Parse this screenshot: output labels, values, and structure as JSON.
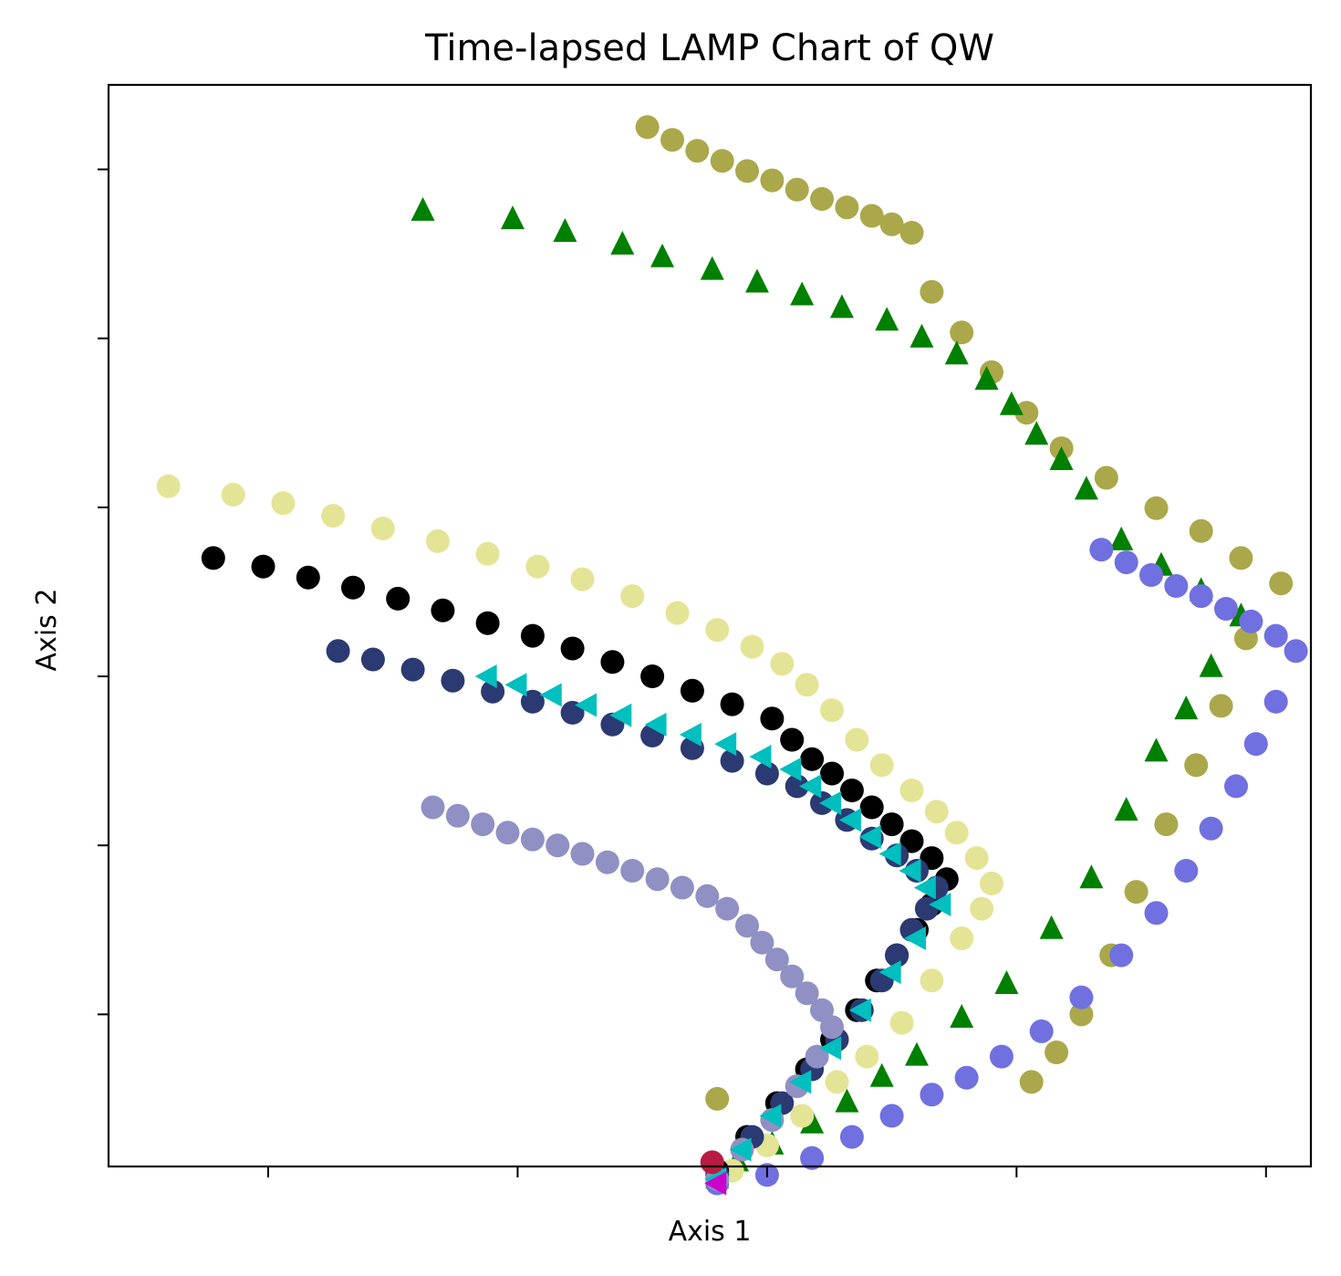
{
  "chart_data": {
    "type": "scatter",
    "title": "Time-lapsed LAMP Chart of QW",
    "xlabel": "Axis 1",
    "ylabel": "Axis 2",
    "xlim": [
      -7.2,
      16.9
    ],
    "ylim": [
      -5.8,
      7.0
    ],
    "x_ticks": [
      -4,
      1,
      6,
      11,
      16
    ],
    "y_ticks": [
      -4,
      -2,
      0,
      2,
      4,
      6
    ],
    "tick_labels_shown": false,
    "grid": false,
    "legend": "none",
    "origin": [
      5.0,
      -5.0
    ],
    "series": [
      {
        "color": "#aaa84a",
        "marker": "circle",
        "points": [
          [
            3.6,
            6.5
          ],
          [
            4.1,
            6.35
          ],
          [
            4.6,
            6.22
          ],
          [
            5.1,
            6.1
          ],
          [
            5.6,
            5.98
          ],
          [
            6.1,
            5.87
          ],
          [
            6.6,
            5.76
          ],
          [
            7.1,
            5.65
          ],
          [
            7.6,
            5.55
          ],
          [
            8.1,
            5.45
          ],
          [
            8.5,
            5.35
          ],
          [
            8.9,
            5.25
          ],
          [
            9.3,
            4.55
          ],
          [
            9.9,
            4.07
          ],
          [
            10.5,
            3.6
          ],
          [
            11.2,
            3.12
          ],
          [
            11.9,
            2.7
          ],
          [
            12.8,
            2.35
          ],
          [
            13.8,
            1.99
          ],
          [
            14.7,
            1.72
          ],
          [
            15.5,
            1.4
          ],
          [
            16.3,
            1.1
          ],
          [
            15.6,
            0.45
          ],
          [
            15.1,
            -0.35
          ],
          [
            14.6,
            -1.05
          ],
          [
            14.0,
            -1.75
          ],
          [
            13.4,
            -2.55
          ],
          [
            12.9,
            -3.3
          ],
          [
            12.3,
            -4.0
          ],
          [
            11.8,
            -4.45
          ],
          [
            11.3,
            -4.8
          ],
          [
            5.0,
            -5.0
          ]
        ]
      },
      {
        "color": "#008000",
        "marker": "triangle-up",
        "points": [
          [
            -0.9,
            5.5
          ],
          [
            0.9,
            5.4
          ],
          [
            1.95,
            5.25
          ],
          [
            3.1,
            5.1
          ],
          [
            3.9,
            4.95
          ],
          [
            4.9,
            4.8
          ],
          [
            5.8,
            4.65
          ],
          [
            6.7,
            4.5
          ],
          [
            7.5,
            4.35
          ],
          [
            8.4,
            4.2
          ],
          [
            9.1,
            4.0
          ],
          [
            9.8,
            3.8
          ],
          [
            10.4,
            3.5
          ],
          [
            10.9,
            3.2
          ],
          [
            11.4,
            2.85
          ],
          [
            11.9,
            2.55
          ],
          [
            12.4,
            2.2
          ],
          [
            13.1,
            1.6
          ],
          [
            13.9,
            1.3
          ],
          [
            14.7,
            1.0
          ],
          [
            15.5,
            0.7
          ],
          [
            14.9,
            0.1
          ],
          [
            14.4,
            -0.4
          ],
          [
            13.8,
            -0.9
          ],
          [
            13.2,
            -1.6
          ],
          [
            12.5,
            -2.4
          ],
          [
            11.7,
            -3.0
          ],
          [
            10.8,
            -3.65
          ],
          [
            9.9,
            -4.05
          ],
          [
            9.0,
            -4.5
          ],
          [
            8.3,
            -4.75
          ],
          [
            7.6,
            -5.05
          ],
          [
            6.9,
            -5.3
          ],
          [
            6.1,
            -5.55
          ],
          [
            5.4,
            -5.75
          ],
          [
            5.0,
            -5.95
          ]
        ]
      },
      {
        "color": "#7070e0",
        "marker": "circle",
        "points": [
          [
            12.7,
            1.5
          ],
          [
            13.2,
            1.35
          ],
          [
            13.7,
            1.2
          ],
          [
            14.2,
            1.07
          ],
          [
            14.7,
            0.95
          ],
          [
            15.2,
            0.8
          ],
          [
            15.7,
            0.65
          ],
          [
            16.2,
            0.48
          ],
          [
            16.6,
            0.3
          ],
          [
            16.2,
            -0.3
          ],
          [
            15.8,
            -0.8
          ],
          [
            15.4,
            -1.3
          ],
          [
            14.9,
            -1.8
          ],
          [
            14.4,
            -2.3
          ],
          [
            13.8,
            -2.8
          ],
          [
            13.1,
            -3.3
          ],
          [
            12.3,
            -3.8
          ],
          [
            11.5,
            -4.2
          ],
          [
            10.7,
            -4.5
          ],
          [
            10.0,
            -4.75
          ],
          [
            9.3,
            -4.95
          ],
          [
            8.5,
            -5.2
          ],
          [
            7.7,
            -5.45
          ],
          [
            6.9,
            -5.7
          ],
          [
            6.0,
            -5.9
          ],
          [
            5.0,
            -6.0
          ]
        ]
      },
      {
        "color": "#e4e496",
        "marker": "circle",
        "points": [
          [
            -6.0,
            2.25
          ],
          [
            -4.7,
            2.15
          ],
          [
            -3.7,
            2.05
          ],
          [
            -2.7,
            1.9
          ],
          [
            -1.7,
            1.75
          ],
          [
            -0.6,
            1.6
          ],
          [
            0.4,
            1.45
          ],
          [
            1.4,
            1.3
          ],
          [
            2.3,
            1.15
          ],
          [
            3.3,
            0.95
          ],
          [
            4.2,
            0.75
          ],
          [
            5.0,
            0.55
          ],
          [
            5.7,
            0.35
          ],
          [
            6.3,
            0.15
          ],
          [
            6.8,
            -0.1
          ],
          [
            7.3,
            -0.4
          ],
          [
            7.8,
            -0.75
          ],
          [
            8.3,
            -1.05
          ],
          [
            8.9,
            -1.35
          ],
          [
            9.4,
            -1.6
          ],
          [
            9.8,
            -1.85
          ],
          [
            10.2,
            -2.15
          ],
          [
            10.5,
            -2.45
          ],
          [
            10.3,
            -2.75
          ],
          [
            9.9,
            -3.1
          ],
          [
            9.3,
            -3.6
          ],
          [
            8.7,
            -4.1
          ],
          [
            8.0,
            -4.5
          ],
          [
            7.4,
            -4.8
          ],
          [
            6.7,
            -5.2
          ],
          [
            6.0,
            -5.55
          ],
          [
            5.3,
            -5.85
          ]
        ]
      },
      {
        "color": "#000000",
        "marker": "circle",
        "points": [
          [
            -5.1,
            1.4
          ],
          [
            -4.1,
            1.3
          ],
          [
            -3.2,
            1.17
          ],
          [
            -2.3,
            1.05
          ],
          [
            -1.4,
            0.92
          ],
          [
            -0.5,
            0.78
          ],
          [
            0.4,
            0.63
          ],
          [
            1.3,
            0.48
          ],
          [
            2.1,
            0.33
          ],
          [
            2.9,
            0.17
          ],
          [
            3.7,
            0.0
          ],
          [
            4.5,
            -0.17
          ],
          [
            5.3,
            -0.33
          ],
          [
            6.1,
            -0.5
          ],
          [
            6.5,
            -0.75
          ],
          [
            6.9,
            -0.98
          ],
          [
            7.3,
            -1.15
          ],
          [
            7.7,
            -1.35
          ],
          [
            8.1,
            -1.55
          ],
          [
            8.5,
            -1.75
          ],
          [
            8.9,
            -1.95
          ],
          [
            9.3,
            -2.15
          ],
          [
            9.6,
            -2.4
          ],
          [
            9.3,
            -2.7
          ],
          [
            9.0,
            -3.0
          ],
          [
            8.6,
            -3.3
          ],
          [
            8.2,
            -3.6
          ],
          [
            7.8,
            -3.95
          ],
          [
            7.3,
            -4.3
          ],
          [
            6.8,
            -4.65
          ],
          [
            6.2,
            -5.05
          ],
          [
            5.6,
            -5.45
          ],
          [
            5.0,
            -5.85
          ]
        ]
      },
      {
        "color": "#2b3a72",
        "marker": "circle",
        "points": [
          [
            -2.6,
            0.3
          ],
          [
            -1.9,
            0.2
          ],
          [
            -1.1,
            0.08
          ],
          [
            -0.3,
            -0.05
          ],
          [
            0.5,
            -0.18
          ],
          [
            1.3,
            -0.3
          ],
          [
            2.1,
            -0.43
          ],
          [
            2.9,
            -0.57
          ],
          [
            3.7,
            -0.7
          ],
          [
            4.5,
            -0.85
          ],
          [
            5.3,
            -1.0
          ],
          [
            6.0,
            -1.15
          ],
          [
            6.6,
            -1.3
          ],
          [
            7.1,
            -1.5
          ],
          [
            7.6,
            -1.7
          ],
          [
            8.1,
            -1.92
          ],
          [
            8.6,
            -2.12
          ],
          [
            9.0,
            -2.3
          ],
          [
            9.4,
            -2.5
          ],
          [
            9.2,
            -2.75
          ],
          [
            8.9,
            -3.0
          ],
          [
            8.6,
            -3.3
          ],
          [
            8.3,
            -3.6
          ],
          [
            7.9,
            -3.95
          ],
          [
            7.4,
            -4.3
          ],
          [
            6.9,
            -4.65
          ],
          [
            6.3,
            -5.05
          ],
          [
            5.7,
            -5.45
          ],
          [
            5.0,
            -5.9
          ]
        ]
      },
      {
        "color": "#9090c4",
        "marker": "circle",
        "points": [
          [
            -0.7,
            -1.55
          ],
          [
            -0.2,
            -1.65
          ],
          [
            0.3,
            -1.75
          ],
          [
            0.8,
            -1.85
          ],
          [
            1.3,
            -1.93
          ],
          [
            1.8,
            -2.0
          ],
          [
            2.3,
            -2.1
          ],
          [
            2.8,
            -2.2
          ],
          [
            3.3,
            -2.3
          ],
          [
            3.8,
            -2.4
          ],
          [
            4.3,
            -2.5
          ],
          [
            4.8,
            -2.6
          ],
          [
            5.2,
            -2.75
          ],
          [
            5.6,
            -2.95
          ],
          [
            5.9,
            -3.15
          ],
          [
            6.2,
            -3.35
          ],
          [
            6.5,
            -3.55
          ],
          [
            6.8,
            -3.75
          ],
          [
            7.1,
            -3.95
          ],
          [
            7.3,
            -4.15
          ],
          [
            7.0,
            -4.5
          ],
          [
            6.6,
            -4.85
          ],
          [
            6.1,
            -5.25
          ],
          [
            5.5,
            -5.6
          ],
          [
            5.0,
            -5.95
          ]
        ]
      },
      {
        "color": "#00bfbf",
        "marker": "triangle-left",
        "points": [
          [
            0.4,
            0.0
          ],
          [
            1.0,
            -0.1
          ],
          [
            1.7,
            -0.22
          ],
          [
            2.4,
            -0.34
          ],
          [
            3.1,
            -0.46
          ],
          [
            3.8,
            -0.57
          ],
          [
            4.5,
            -0.69
          ],
          [
            5.2,
            -0.8
          ],
          [
            5.9,
            -0.95
          ],
          [
            6.5,
            -1.1
          ],
          [
            6.9,
            -1.3
          ],
          [
            7.3,
            -1.5
          ],
          [
            7.7,
            -1.7
          ],
          [
            8.1,
            -1.9
          ],
          [
            8.5,
            -2.1
          ],
          [
            8.9,
            -2.3
          ],
          [
            9.2,
            -2.5
          ],
          [
            9.5,
            -2.7
          ],
          [
            9.0,
            -3.1
          ],
          [
            8.5,
            -3.5
          ],
          [
            7.9,
            -3.95
          ],
          [
            7.3,
            -4.4
          ],
          [
            6.7,
            -4.8
          ],
          [
            6.1,
            -5.2
          ],
          [
            5.5,
            -5.6
          ],
          [
            5.0,
            -5.95
          ]
        ]
      },
      {
        "color": "#b81c44",
        "marker": "circle",
        "points": [
          [
            4.9,
            -5.75
          ]
        ]
      },
      {
        "color": "#cc00cc",
        "marker": "triangle-left",
        "points": [
          [
            5.0,
            -6.0
          ]
        ]
      }
    ]
  }
}
